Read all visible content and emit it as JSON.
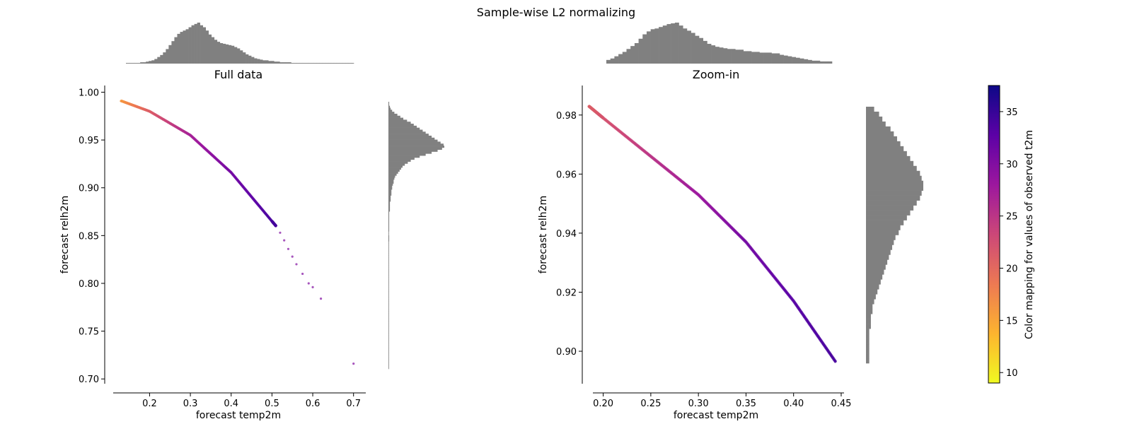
{
  "figure": {
    "title": "Sample-wise L2 normalizing"
  },
  "colors": {
    "hist": "#808080",
    "axis": "#000000"
  },
  "colormap": {
    "name": "plasma",
    "stops": [
      "#f0f921",
      "#fdb42f",
      "#ed7953",
      "#cc4778",
      "#9c179e",
      "#5c01a6",
      "#0d0887"
    ],
    "range": [
      9,
      37.5
    ],
    "label": "Color mapping for values of observed t2m",
    "ticks": [
      "10",
      "15",
      "20",
      "25",
      "30",
      "35"
    ]
  },
  "chart_data": [
    {
      "type": "scatter",
      "title": "Full data",
      "xlabel": "forecast temp2m",
      "ylabel": "forecast relh2m",
      "xlim": [
        0.09,
        0.73
      ],
      "ylim": [
        0.695,
        1.007
      ],
      "xticks": [
        "0.2",
        "0.3",
        "0.4",
        "0.5",
        "0.6",
        "0.7"
      ],
      "yticks": [
        "0.70",
        "0.75",
        "0.80",
        "0.85",
        "0.90",
        "0.95",
        "1.00"
      ],
      "curve": {
        "x": [
          0.13,
          0.2,
          0.3,
          0.4,
          0.5,
          0.51
        ],
        "y": [
          0.991,
          0.98,
          0.955,
          0.916,
          0.865,
          0.86
        ],
        "color_values": [
          16,
          21,
          27,
          31,
          34,
          34
        ]
      },
      "sparse_points": [
        {
          "x": 0.52,
          "y": 0.853,
          "c": 30
        },
        {
          "x": 0.53,
          "y": 0.845,
          "c": 30
        },
        {
          "x": 0.54,
          "y": 0.836,
          "c": 30
        },
        {
          "x": 0.55,
          "y": 0.828,
          "c": 30
        },
        {
          "x": 0.56,
          "y": 0.82,
          "c": 30
        },
        {
          "x": 0.575,
          "y": 0.81,
          "c": 30
        },
        {
          "x": 0.59,
          "y": 0.8,
          "c": 30
        },
        {
          "x": 0.6,
          "y": 0.796,
          "c": 30
        },
        {
          "x": 0.62,
          "y": 0.784,
          "c": 30
        },
        {
          "x": 0.7,
          "y": 0.716,
          "c": 30
        }
      ],
      "x_hist": {
        "range": [
          0.13,
          0.7
        ],
        "counts": [
          1,
          1,
          1,
          1,
          1,
          2,
          2,
          3,
          4,
          5,
          7,
          10,
          13,
          17,
          22,
          28,
          34,
          40,
          45,
          48,
          50,
          52,
          55,
          58,
          60,
          62,
          58,
          55,
          50,
          44,
          40,
          36,
          33,
          31,
          30,
          29,
          28,
          27,
          25,
          23,
          20,
          17,
          14,
          12,
          10,
          8,
          7,
          6,
          5,
          5,
          4,
          4,
          3,
          3,
          2,
          2,
          2,
          2,
          1,
          1,
          1,
          1,
          1,
          1,
          1,
          1,
          1,
          1,
          1,
          1,
          1,
          1,
          1,
          1,
          1,
          1,
          1,
          1,
          1,
          1
        ]
      },
      "y_hist": {
        "range": [
          0.716,
          0.991
        ],
        "counts": [
          0,
          0,
          0,
          0,
          0,
          0,
          0,
          0,
          0,
          0,
          0,
          0,
          0,
          0,
          0,
          0,
          0,
          0,
          0,
          0,
          0,
          0,
          0,
          0,
          0,
          0,
          0,
          0,
          0,
          0,
          0,
          0,
          0,
          0,
          0,
          0,
          0,
          0,
          0,
          0,
          0,
          0,
          0,
          0,
          0,
          0,
          0,
          0,
          0,
          0,
          0,
          0,
          0,
          0,
          0,
          0,
          0,
          0,
          0,
          0,
          0,
          0,
          0,
          0,
          1,
          1,
          1,
          0,
          0,
          1,
          1,
          1,
          1,
          1,
          1,
          1,
          1,
          1,
          1,
          2,
          2,
          2,
          2,
          2,
          3,
          3,
          3,
          4,
          4,
          4,
          5,
          5,
          6,
          7,
          7,
          8,
          9,
          11,
          13,
          15,
          17,
          19,
          22,
          26,
          30,
          35,
          42,
          50,
          58,
          66,
          72,
          75,
          74,
          70,
          66,
          62,
          58,
          54,
          50,
          46,
          42,
          38,
          34,
          30,
          25,
          20,
          16,
          12,
          8,
          5,
          3,
          2,
          1,
          1
        ]
      }
    },
    {
      "type": "scatter",
      "title": "Zoom-in",
      "xlabel": "forecast temp2m",
      "ylabel": "forecast relh2m",
      "xlim": [
        0.178,
        0.453
      ],
      "ylim": [
        0.889,
        0.99
      ],
      "xticks": [
        "0.20",
        "0.25",
        "0.30",
        "0.35",
        "0.40",
        "0.45"
      ],
      "yticks": [
        "0.90",
        "0.92",
        "0.94",
        "0.96",
        "0.98"
      ],
      "curve": {
        "x": [
          0.185,
          0.2,
          0.25,
          0.3,
          0.35,
          0.4,
          0.444
        ],
        "y": [
          0.983,
          0.979,
          0.966,
          0.953,
          0.937,
          0.917,
          0.8965
        ],
        "color_values": [
          21,
          22,
          25,
          28,
          31,
          33,
          34
        ]
      },
      "x_hist": {
        "range": [
          0.185,
          0.444
        ],
        "counts": [
          5,
          7,
          10,
          13,
          16,
          20,
          24,
          28,
          34,
          40,
          44,
          47,
          48,
          50,
          52,
          54,
          55,
          56,
          52,
          48,
          45,
          42,
          38,
          35,
          31,
          27,
          25,
          23,
          22,
          21,
          20,
          20,
          19,
          19,
          17,
          17,
          16,
          16,
          15,
          15,
          15,
          14,
          14,
          12,
          11,
          10,
          9,
          8,
          7,
          6,
          5,
          4,
          4,
          3,
          3,
          3
        ]
      },
      "y_hist": {
        "range": [
          0.8965,
          0.983
        ],
        "counts": [
          2,
          2,
          2,
          2,
          2,
          2,
          2,
          3,
          3,
          3,
          4,
          4,
          5,
          6,
          7,
          8,
          9,
          10,
          11,
          12,
          13,
          14,
          15,
          16,
          17,
          18,
          20,
          21,
          23,
          25,
          27,
          29,
          31,
          33,
          34,
          35,
          35,
          34,
          33,
          31,
          29,
          27,
          25,
          23,
          21,
          19,
          17,
          15,
          12,
          10,
          8,
          5
        ]
      }
    }
  ]
}
